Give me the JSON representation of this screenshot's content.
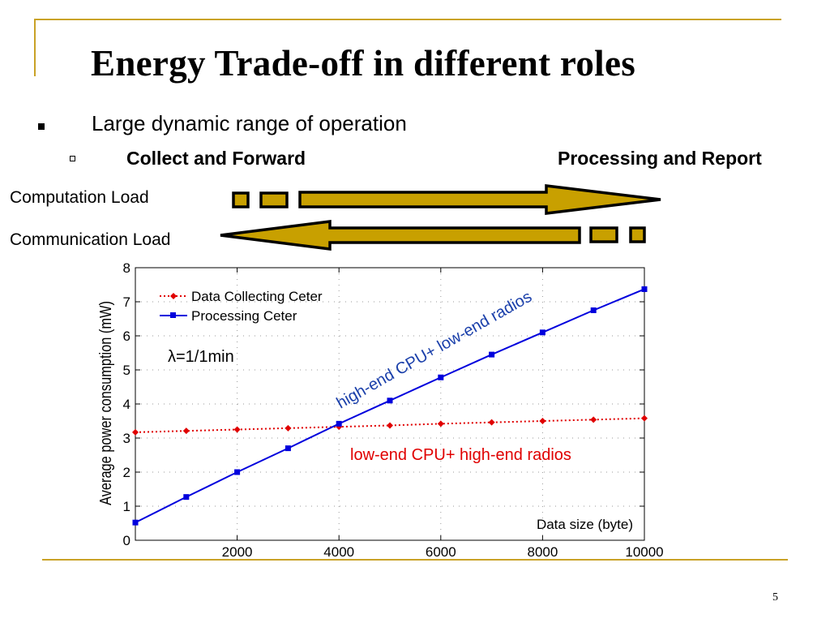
{
  "slide": {
    "title": "Energy Trade-off in different roles",
    "bullet": "Large dynamic range of operation",
    "sub_left": "Collect and Forward",
    "sub_right": "Processing and Report",
    "computation_label": "Computation Load",
    "communication_label": "Communication Load",
    "page_number": "5",
    "colors": {
      "accent_gold": "#c9a227",
      "arrow_fill": "#c8a000",
      "red_series": "#e00000",
      "blue_series": "#0000dd"
    }
  },
  "chart_data": {
    "type": "line",
    "x": [
      0,
      1000,
      2000,
      3000,
      4000,
      5000,
      6000,
      7000,
      8000,
      9000,
      10000
    ],
    "xticks": [
      "2000",
      "4000",
      "6000",
      "8000",
      "10000"
    ],
    "yticks": [
      "0",
      "1",
      "2",
      "3",
      "4",
      "5",
      "6",
      "7",
      "8"
    ],
    "xlim": [
      0,
      10000
    ],
    "ylim": [
      0,
      8
    ],
    "xlabel": "Data size (byte)",
    "ylabel": "Average power consumption (mW)",
    "grid": true,
    "legend_position": "top-left",
    "series": [
      {
        "name": "Data Collecting Ceter",
        "color": "#e00000",
        "marker": "diamond",
        "style": "dotted",
        "values": [
          3.17,
          3.21,
          3.25,
          3.29,
          3.33,
          3.37,
          3.42,
          3.46,
          3.5,
          3.54,
          3.58
        ]
      },
      {
        "name": "Processing Ceter",
        "color": "#0000dd",
        "marker": "square",
        "style": "solid",
        "values": [
          0.52,
          1.27,
          2.0,
          2.7,
          3.42,
          4.1,
          4.78,
          5.45,
          6.1,
          6.75,
          7.37
        ]
      }
    ],
    "annotations": {
      "lambda": "λ=1/1min",
      "blue_note": "high-end CPU+ low-end radios",
      "red_note": "low-end CPU+ high-end radios"
    }
  }
}
